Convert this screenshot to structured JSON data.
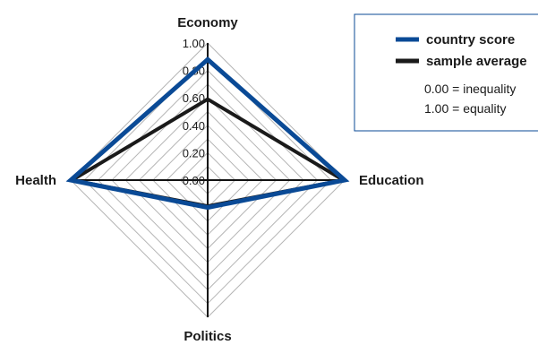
{
  "chart_data": {
    "type": "radar",
    "axes": [
      "Economy",
      "Education",
      "Politics",
      "Health"
    ],
    "scale": {
      "min": 0,
      "max": 1,
      "ticks": [
        "0.00",
        "0.20",
        "0.40",
        "0.60",
        "0.80",
        "1.00"
      ],
      "tick_values": [
        0,
        0.2,
        0.4,
        0.6,
        0.8,
        1.0
      ],
      "grid_rings": 10
    },
    "series": [
      {
        "name": "country score",
        "color": "#0a4a96",
        "values": [
          0.88,
          1.0,
          0.2,
          1.0
        ]
      },
      {
        "name": "sample average",
        "color": "#1a1a1a",
        "values": [
          0.59,
          0.99,
          0.19,
          0.99
        ]
      }
    ],
    "legend": {
      "placement": "top-right",
      "notes": [
        "0.00 = inequality",
        "1.00 = equality"
      ]
    }
  }
}
